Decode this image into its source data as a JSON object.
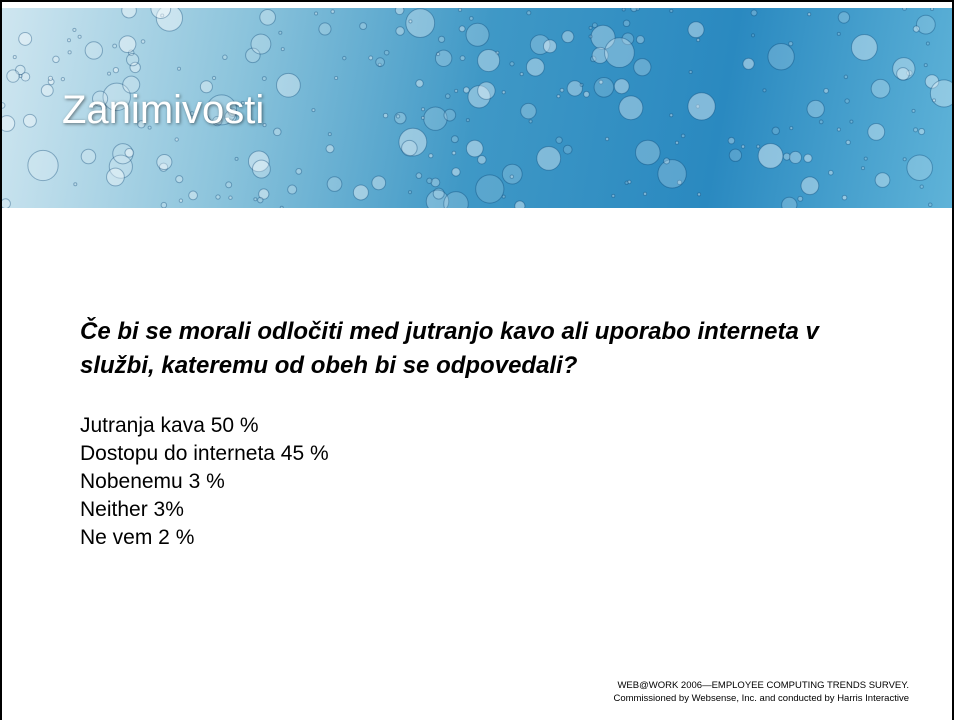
{
  "header": {
    "title": "Zanimivosti"
  },
  "question": {
    "lines": [
      "Če bi se morali odločiti med jutranjo kavo ali uporabo interneta v",
      "službi, kateremu od obeh bi se odpovedali?"
    ]
  },
  "answers": [
    "Jutranja kava 50 %",
    "Dostopu do interneta 45 %",
    "Nobenemu 3 %",
    "Neither 3%",
    "Ne vem 2 %"
  ],
  "footer": {
    "lines": [
      "WEB@WORK 2006—EMPLOYEE COMPUTING TRENDS SURVEY.",
      "Commissioned by Websense, Inc. and conducted by Harris Interactive"
    ]
  }
}
